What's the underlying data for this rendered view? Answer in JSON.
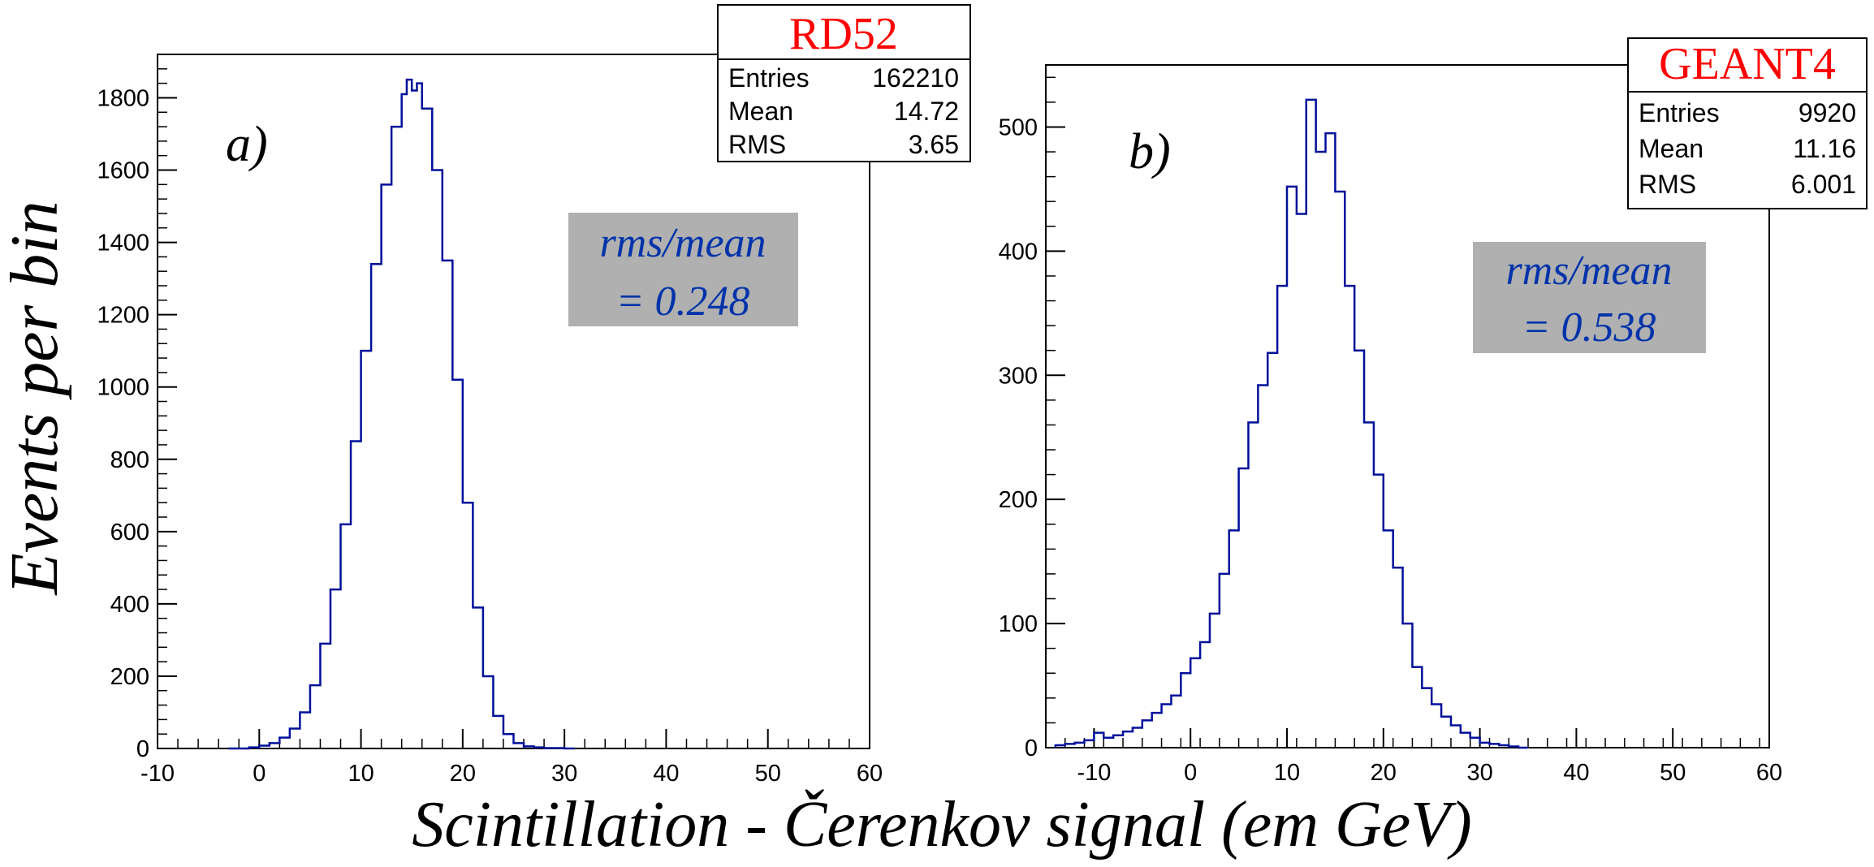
{
  "figure": {
    "ylabel": "Events per bin",
    "xlabel": "Scintillation - Čerenkov signal (em GeV)"
  },
  "colors": {
    "histogram_line": "#00109a",
    "stat_title": "#ff0000",
    "ratio_text": "#0033aa",
    "ratio_box": "#b0b0b0",
    "frame": "#000000"
  },
  "panels": [
    {
      "label": "a)",
      "stats": {
        "title": "RD52",
        "rows": [
          {
            "name": "Entries",
            "value": "162210"
          },
          {
            "name": "Mean",
            "value": "14.72"
          },
          {
            "name": "RMS",
            "value": "3.65"
          }
        ]
      },
      "ratio": {
        "line1": "rms/mean",
        "line2": "= 0.248"
      }
    },
    {
      "label": "b)",
      "stats": {
        "title": "GEANT4",
        "rows": [
          {
            "name": "Entries",
            "value": "9920"
          },
          {
            "name": "Mean",
            "value": "11.16"
          },
          {
            "name": "RMS",
            "value": "6.001"
          }
        ]
      },
      "ratio": {
        "line1": "rms/mean",
        "line2": "= 0.538"
      }
    }
  ],
  "chart_data": [
    {
      "type": "line",
      "step": true,
      "series_name": "RD52",
      "xlim": [
        -10,
        60
      ],
      "ylim": [
        0,
        1920
      ],
      "x_ticks": [
        -10,
        0,
        10,
        20,
        30,
        40,
        50,
        60
      ],
      "y_ticks": [
        0,
        200,
        400,
        600,
        800,
        1000,
        1200,
        1400,
        1600,
        1800
      ],
      "x": [
        -3,
        -1,
        0,
        1,
        2,
        3,
        4,
        5,
        6,
        7,
        8,
        9,
        10,
        11,
        12,
        13,
        14,
        14.5,
        15,
        15.5,
        16,
        17,
        18,
        19,
        20,
        21,
        22,
        23,
        24,
        25,
        26,
        27,
        28,
        30
      ],
      "y": [
        0,
        3,
        8,
        15,
        30,
        55,
        100,
        175,
        290,
        440,
        620,
        850,
        1100,
        1340,
        1560,
        1720,
        1810,
        1850,
        1820,
        1840,
        1770,
        1600,
        1350,
        1020,
        680,
        390,
        200,
        90,
        40,
        15,
        6,
        3,
        1,
        0
      ]
    },
    {
      "type": "line",
      "step": true,
      "series_name": "GEANT4",
      "xlim": [
        -15,
        60
      ],
      "ylim": [
        0,
        550
      ],
      "x_ticks": [
        -10,
        0,
        10,
        20,
        30,
        40,
        50,
        60
      ],
      "y_ticks": [
        0,
        100,
        200,
        300,
        400,
        500
      ],
      "x": [
        -14,
        -13,
        -12,
        -11,
        -10,
        -9,
        -8,
        -7,
        -6,
        -5,
        -4,
        -3,
        -2,
        -1,
        0,
        1,
        2,
        3,
        4,
        5,
        6,
        7,
        8,
        9,
        10,
        11,
        12,
        13,
        14,
        15,
        16,
        17,
        18,
        19,
        20,
        21,
        22,
        23,
        24,
        25,
        26,
        27,
        28,
        29,
        30,
        31,
        32,
        33,
        34
      ],
      "y": [
        2,
        3,
        4,
        6,
        12,
        8,
        10,
        13,
        16,
        22,
        28,
        35,
        42,
        60,
        72,
        85,
        108,
        140,
        175,
        225,
        262,
        292,
        318,
        372,
        452,
        430,
        522,
        480,
        495,
        448,
        372,
        320,
        262,
        220,
        175,
        145,
        100,
        65,
        48,
        35,
        25,
        18,
        12,
        8,
        4,
        3,
        2,
        1,
        0
      ]
    }
  ]
}
